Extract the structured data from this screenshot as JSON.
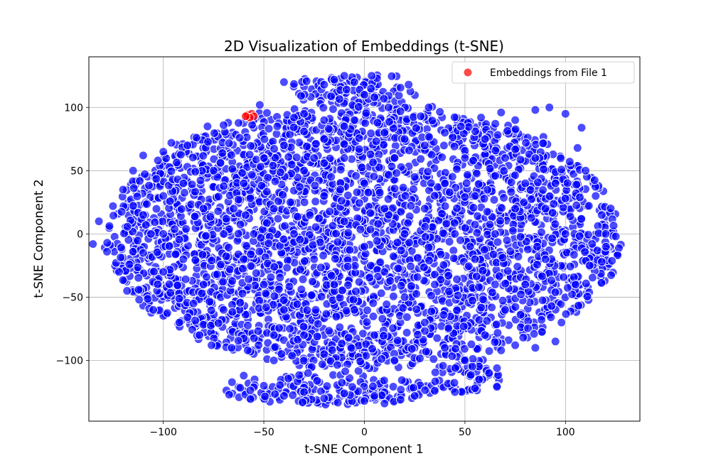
{
  "chart_data": {
    "type": "scatter",
    "title": "2D Visualization of Embeddings (t-SNE)",
    "xlabel": "t-SNE Component 1",
    "ylabel": "t-SNE Component 2",
    "xlim": [
      -137,
      137
    ],
    "ylim": [
      -148,
      140
    ],
    "xticks": [
      -100,
      -50,
      0,
      50,
      100
    ],
    "yticks": [
      -100,
      -50,
      0,
      50,
      100
    ],
    "xtick_labels": [
      "−100",
      "−50",
      "0",
      "50",
      "100"
    ],
    "ytick_labels": [
      "−100",
      "−50",
      "0",
      "50",
      "100"
    ],
    "grid": true,
    "legend_position": "top-right",
    "series": [
      {
        "name": "Embeddings from File 1",
        "color": "#ff0000",
        "points": [
          [
            -58,
            94
          ],
          [
            -56,
            95
          ],
          [
            -55,
            93
          ],
          [
            -57,
            92
          ],
          [
            -59,
            93
          ]
        ]
      },
      {
        "color": "#0000ff",
        "points": [
          [
            -135,
            -8
          ],
          [
            -132,
            10
          ],
          [
            -128,
            -14
          ],
          [
            -125,
            22
          ],
          [
            -122,
            -30
          ],
          [
            -120,
            35
          ],
          [
            -118,
            -45
          ],
          [
            -115,
            50
          ],
          [
            -112,
            -52
          ],
          [
            -110,
            62
          ],
          [
            -105,
            -60
          ],
          [
            -100,
            65
          ],
          [
            -96,
            72
          ],
          [
            -92,
            -70
          ],
          [
            -88,
            70
          ],
          [
            -82,
            -80
          ],
          [
            -78,
            85
          ],
          [
            -76,
            -88
          ],
          [
            -70,
            86
          ],
          [
            -66,
            -90
          ],
          [
            -62,
            76
          ],
          [
            -58,
            -92
          ],
          [
            -52,
            102
          ],
          [
            -45,
            -100
          ],
          [
            -40,
            120
          ],
          [
            -35,
            92
          ],
          [
            -28,
            -110
          ],
          [
            -20,
            118
          ],
          [
            -15,
            122
          ],
          [
            -10,
            125
          ],
          [
            -5,
            120
          ],
          [
            0,
            110
          ],
          [
            5,
            108
          ],
          [
            12,
            100
          ],
          [
            22,
            118
          ],
          [
            28,
            93
          ],
          [
            32,
            100
          ],
          [
            -60,
            -112
          ],
          [
            -50,
            -120
          ],
          [
            -40,
            -128
          ],
          [
            -30,
            -125
          ],
          [
            -20,
            -130
          ],
          [
            -10,
            -126
          ],
          [
            0,
            -132
          ],
          [
            5,
            -128
          ],
          [
            10,
            -134
          ],
          [
            18,
            -131
          ],
          [
            25,
            -128
          ],
          [
            35,
            -124
          ],
          [
            45,
            -125
          ],
          [
            55,
            -122
          ],
          [
            62,
            -110
          ],
          [
            68,
            -92
          ],
          [
            75,
            -88
          ],
          [
            85,
            -90
          ],
          [
            95,
            -85
          ],
          [
            98,
            -70
          ],
          [
            105,
            -40
          ],
          [
            112,
            -25
          ],
          [
            118,
            -22
          ],
          [
            120,
            0
          ],
          [
            125,
            -2
          ],
          [
            118,
            15
          ],
          [
            115,
            30
          ],
          [
            110,
            50
          ],
          [
            106,
            68
          ],
          [
            108,
            84
          ],
          [
            100,
            95
          ],
          [
            92,
            100
          ],
          [
            85,
            98
          ],
          [
            75,
            90
          ],
          [
            68,
            96
          ],
          [
            58,
            92
          ],
          [
            48,
            85
          ],
          [
            40,
            80
          ],
          [
            -30,
            95
          ],
          [
            -20,
            90
          ],
          [
            -10,
            85
          ],
          [
            10,
            80
          ],
          [
            20,
            75
          ],
          [
            30,
            70
          ],
          [
            -90,
            40
          ],
          [
            -80,
            20
          ],
          [
            -70,
            0
          ],
          [
            -60,
            -20
          ],
          [
            -50,
            -40
          ],
          [
            -40,
            -60
          ],
          [
            -30,
            -80
          ],
          [
            -20,
            -95
          ],
          [
            -90,
            -20
          ],
          [
            -80,
            -40
          ],
          [
            -70,
            -60
          ],
          [
            -60,
            40
          ],
          [
            -50,
            60
          ],
          [
            -40,
            70
          ],
          [
            -30,
            50
          ],
          [
            -20,
            30
          ],
          [
            -10,
            10
          ],
          [
            0,
            -10
          ],
          [
            10,
            -30
          ],
          [
            20,
            -50
          ],
          [
            30,
            -70
          ],
          [
            40,
            -90
          ],
          [
            50,
            -100
          ],
          [
            60,
            -80
          ],
          [
            70,
            -60
          ],
          [
            80,
            -40
          ],
          [
            90,
            -20
          ],
          [
            100,
            0
          ],
          [
            90,
            20
          ],
          [
            80,
            40
          ],
          [
            70,
            60
          ],
          [
            60,
            75
          ],
          [
            50,
            60
          ],
          [
            40,
            40
          ],
          [
            30,
            20
          ],
          [
            20,
            0
          ],
          [
            10,
            20
          ],
          [
            0,
            40
          ],
          [
            -10,
            60
          ],
          [
            -20,
            75
          ],
          [
            -100,
            0
          ],
          [
            -110,
            15
          ],
          [
            -110,
            -15
          ],
          [
            -100,
            30
          ],
          [
            -100,
            -30
          ],
          [
            -5,
            -60
          ],
          [
            5,
            -80
          ],
          [
            15,
            -100
          ],
          [
            -15,
            -40
          ],
          [
            -25,
            -20
          ],
          [
            -35,
            0
          ],
          [
            -45,
            20
          ],
          [
            -55,
            0
          ],
          [
            -65,
            20
          ],
          [
            45,
            0
          ],
          [
            55,
            -20
          ],
          [
            65,
            0
          ],
          [
            75,
            20
          ],
          [
            85,
            60
          ],
          [
            95,
            40
          ],
          [
            -75,
            50
          ],
          [
            -85,
            -55
          ],
          [
            35,
            -40
          ],
          [
            25,
            45
          ],
          [
            -5,
            90
          ],
          [
            55,
            30
          ],
          [
            65,
            -40
          ],
          [
            -45,
            -80
          ],
          [
            15,
            60
          ],
          [
            -25,
            60
          ]
        ]
      }
    ]
  }
}
